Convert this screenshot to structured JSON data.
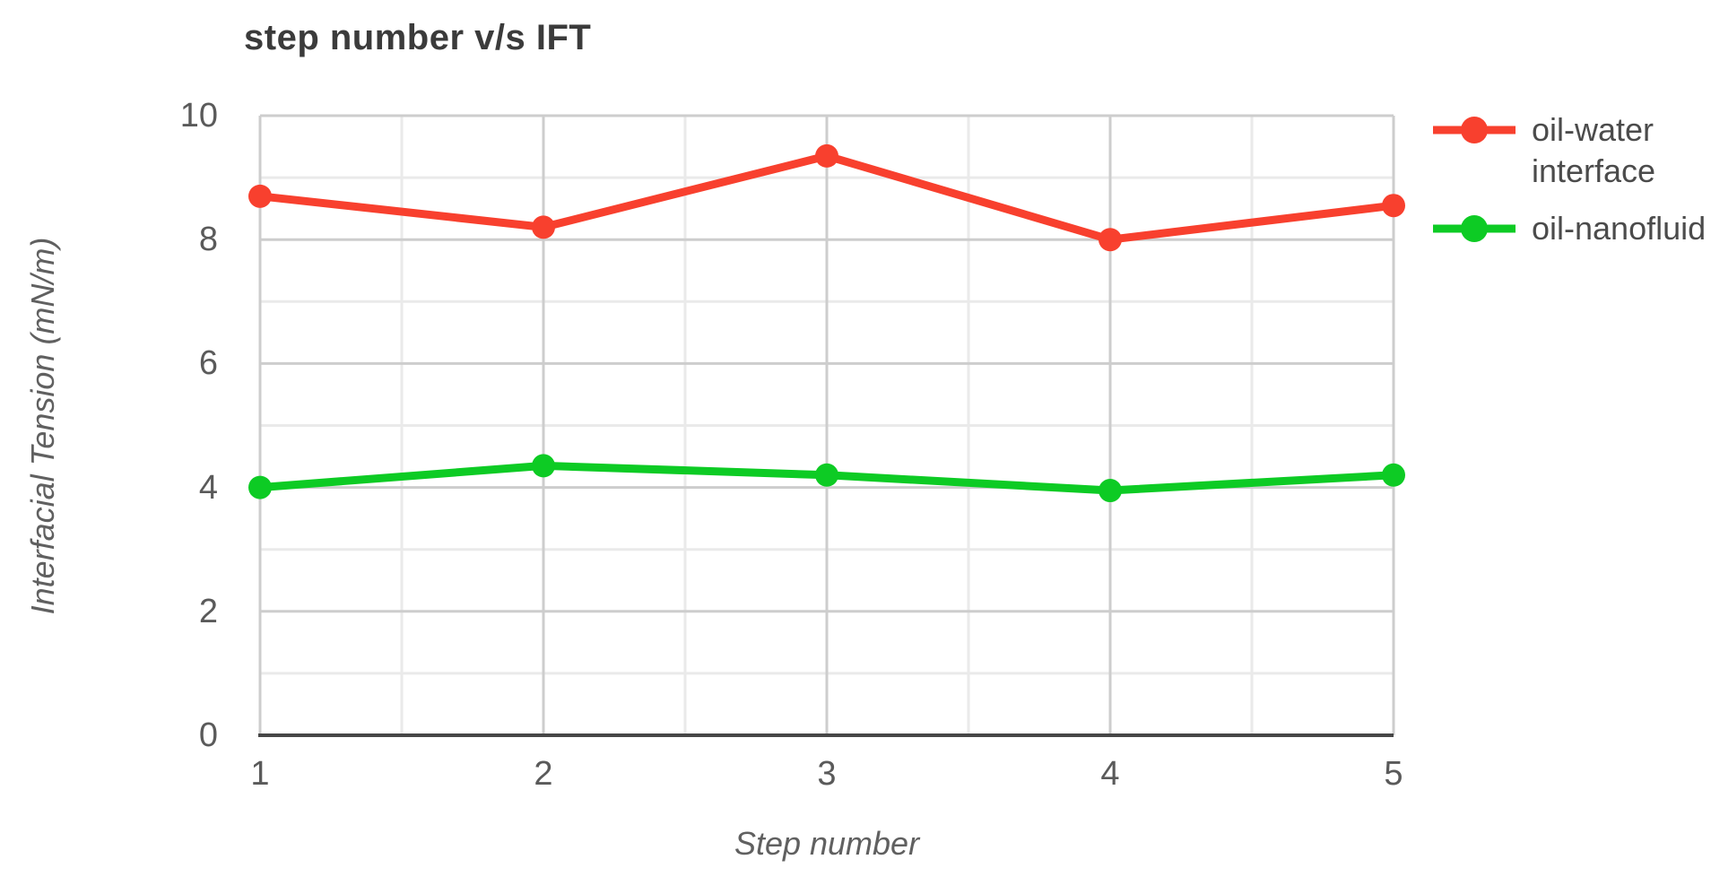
{
  "chart_data": {
    "type": "line",
    "title": "step number v/s IFT",
    "xlabel": "Step number",
    "ylabel": "Interfacial Tension (mN/m)",
    "x": [
      1,
      2,
      3,
      4,
      5
    ],
    "series": [
      {
        "name": "oil-water interface",
        "color": "#f8402e",
        "values": [
          8.7,
          8.2,
          9.35,
          8.0,
          8.55
        ]
      },
      {
        "name": "oil-nanofluid",
        "color": "#0dcb24",
        "values": [
          4.0,
          4.35,
          4.2,
          3.95,
          4.2
        ]
      }
    ],
    "xlim": [
      1,
      5
    ],
    "ylim": [
      0,
      10
    ],
    "x_major_ticks": [
      1,
      2,
      3,
      4,
      5
    ],
    "x_minor_step": 0.5,
    "y_major_ticks": [
      0,
      2,
      4,
      6,
      8,
      10
    ],
    "y_minor_step": 1,
    "grid": true,
    "legend_position": "right",
    "marker": "circle",
    "colors": {
      "background": "#ffffff",
      "major_grid": "#cdcdcd",
      "minor_grid": "#eaeaea",
      "axis_line": "#474747",
      "tick_label": "#5a5a5a",
      "title_text": "#3b3b3b",
      "axis_title_text": "#606060",
      "legend_text": "#4b4b4b"
    }
  }
}
